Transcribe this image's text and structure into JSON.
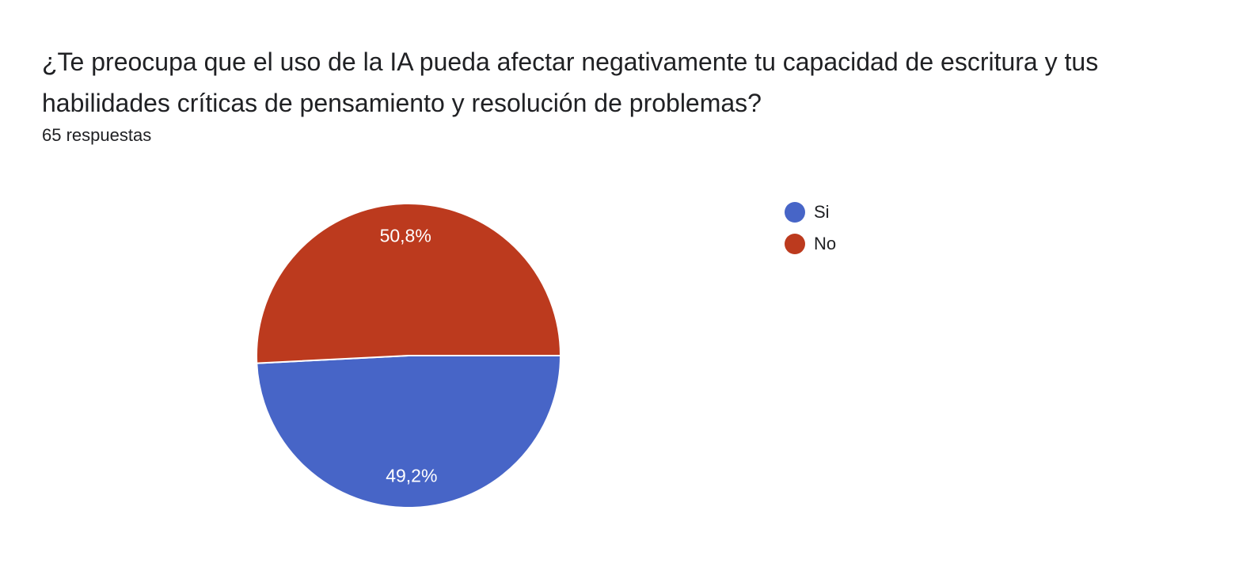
{
  "question": "¿Te preocupa que el uso de la IA pueda afectar negativamente tu capacidad de escritura y tus habilidades críticas de pensamiento y resolución de problemas?",
  "response_count": "65 respuestas",
  "chart_data": {
    "type": "pie",
    "title": "",
    "categories": [
      "Si",
      "No"
    ],
    "values": [
      49.2,
      50.8
    ],
    "labels": [
      "49,2%",
      "50,8%"
    ],
    "colors": [
      "#4765c7",
      "#bc3a1e"
    ],
    "legend_position": "right",
    "start": "top-right quadrant, clockwise from 3 o'clock for Si"
  },
  "legend": {
    "items": [
      {
        "label": "Si",
        "color": "#4765c7"
      },
      {
        "label": "No",
        "color": "#bc3a1e"
      }
    ]
  }
}
